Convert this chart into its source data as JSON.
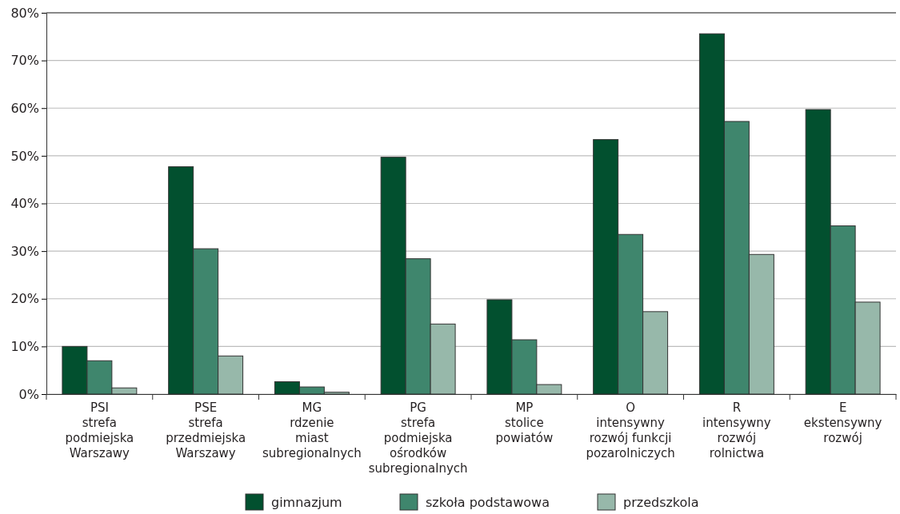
{
  "chart_data": {
    "type": "bar",
    "categories": [
      "PSI\nstrefa\npodmiejska\nWarszawy",
      "PSE\nstrefa\nprzedmiejska\nWarszawy",
      "MG\nrdzenie\nmiast\nsubregionalnych",
      "PG\nstrefa\npodmiejska\nośrodków\nsubregionalnych",
      "MP\nstolice\npowiatów",
      "O\nintensywny\nrozwój funkcji\npozarolniczych",
      "R\nintensywny\nrozwój\nrolnictwa",
      "E\nekstensywny\nrozwój"
    ],
    "series": [
      {
        "name": "gimnazjum",
        "color": "#02502f",
        "values": [
          10.0,
          47.7,
          2.6,
          49.7,
          19.8,
          53.4,
          75.6,
          59.7
        ]
      },
      {
        "name": "szkoła podstawowa",
        "color": "#3f866d",
        "values": [
          7.0,
          30.5,
          1.5,
          28.4,
          11.4,
          33.5,
          57.2,
          35.3
        ]
      },
      {
        "name": "przedszkola",
        "color": "#97b8aa",
        "values": [
          1.3,
          8.0,
          0.4,
          14.7,
          2.0,
          17.3,
          29.3,
          19.3
        ]
      }
    ],
    "ylim": [
      0,
      80
    ],
    "yticks": [
      {
        "value": 0,
        "label": "0%"
      },
      {
        "value": 10,
        "label": "10%"
      },
      {
        "value": 20,
        "label": "20%"
      },
      {
        "value": 30,
        "label": "30%"
      },
      {
        "value": 40,
        "label": "40%"
      },
      {
        "value": 50,
        "label": "50%"
      },
      {
        "value": 60,
        "label": "60%"
      },
      {
        "value": 70,
        "label": "70%"
      },
      {
        "value": 80,
        "label": "80%"
      }
    ],
    "grid": "y",
    "legend": "bottom"
  }
}
